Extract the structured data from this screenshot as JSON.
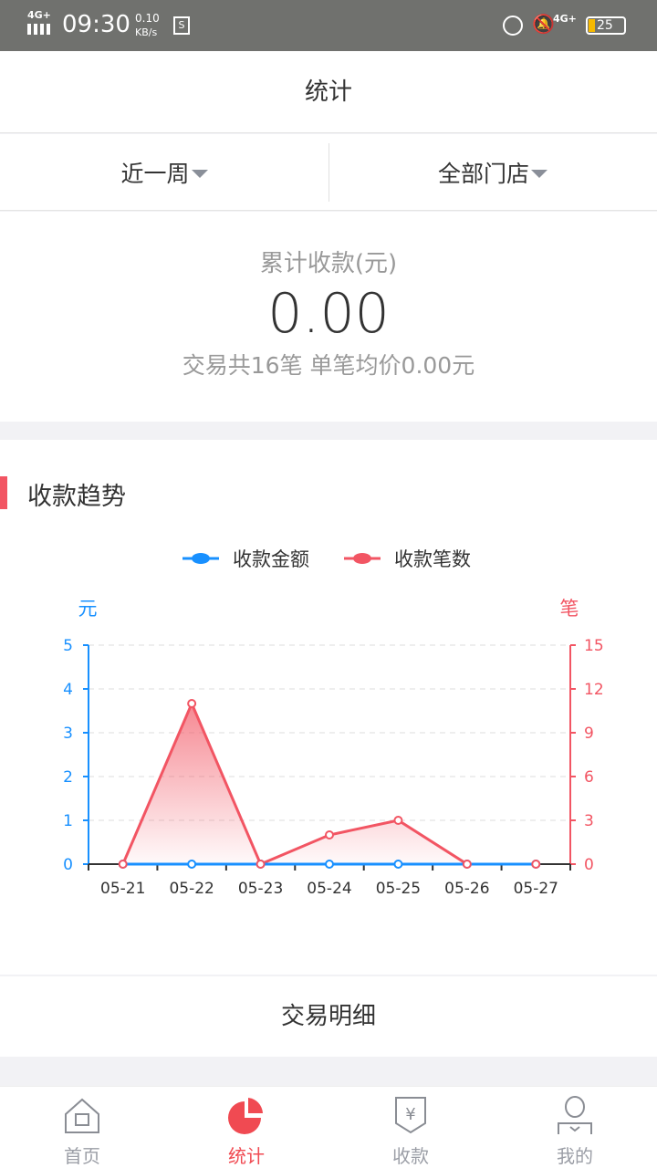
{
  "status_bar": {
    "network": "4G+",
    "time": "09:30",
    "speed_value": "0.10",
    "speed_unit": "KB/s",
    "network2": "4G+",
    "battery": "25"
  },
  "header": {
    "title": "统计"
  },
  "filters": {
    "period": "近一周",
    "store": "全部门店"
  },
  "summary": {
    "label": "累计收款(元)",
    "amount": "0.00",
    "desc": "交易共16笔 单笔均价0.00元"
  },
  "trend": {
    "title": "收款趋势"
  },
  "colors": {
    "accent": "#f04a52",
    "blue": "#1890ff",
    "red": "#f25563"
  },
  "chart_data": {
    "type": "line",
    "categories": [
      "05-21",
      "05-22",
      "05-23",
      "05-24",
      "05-25",
      "05-26",
      "05-27"
    ],
    "left_axis": {
      "unit": "元",
      "ylim": [
        0,
        5
      ],
      "ticks": [
        "0",
        "1",
        "2",
        "3",
        "4",
        "5"
      ]
    },
    "right_axis": {
      "unit": "笔",
      "ylim": [
        0,
        15
      ],
      "ticks": [
        "0",
        "3",
        "6",
        "9",
        "12",
        "15"
      ]
    },
    "legend_position": "top",
    "series": [
      {
        "name": "收款金额",
        "axis": "left",
        "color": "#1890ff",
        "values": [
          0,
          0,
          0,
          0,
          0,
          0,
          0
        ]
      },
      {
        "name": "收款笔数",
        "axis": "right",
        "color": "#f25563",
        "area": true,
        "values": [
          0,
          11,
          0,
          2,
          3,
          0,
          0
        ]
      }
    ],
    "grid": "dashed horizontal"
  },
  "detail": {
    "label": "交易明细"
  },
  "nav": [
    {
      "label": "首页",
      "icon": "home-icon"
    },
    {
      "label": "统计",
      "icon": "pie-chart-icon",
      "active": true
    },
    {
      "label": "收款",
      "icon": "receive-money-icon"
    },
    {
      "label": "我的",
      "icon": "user-icon"
    }
  ]
}
